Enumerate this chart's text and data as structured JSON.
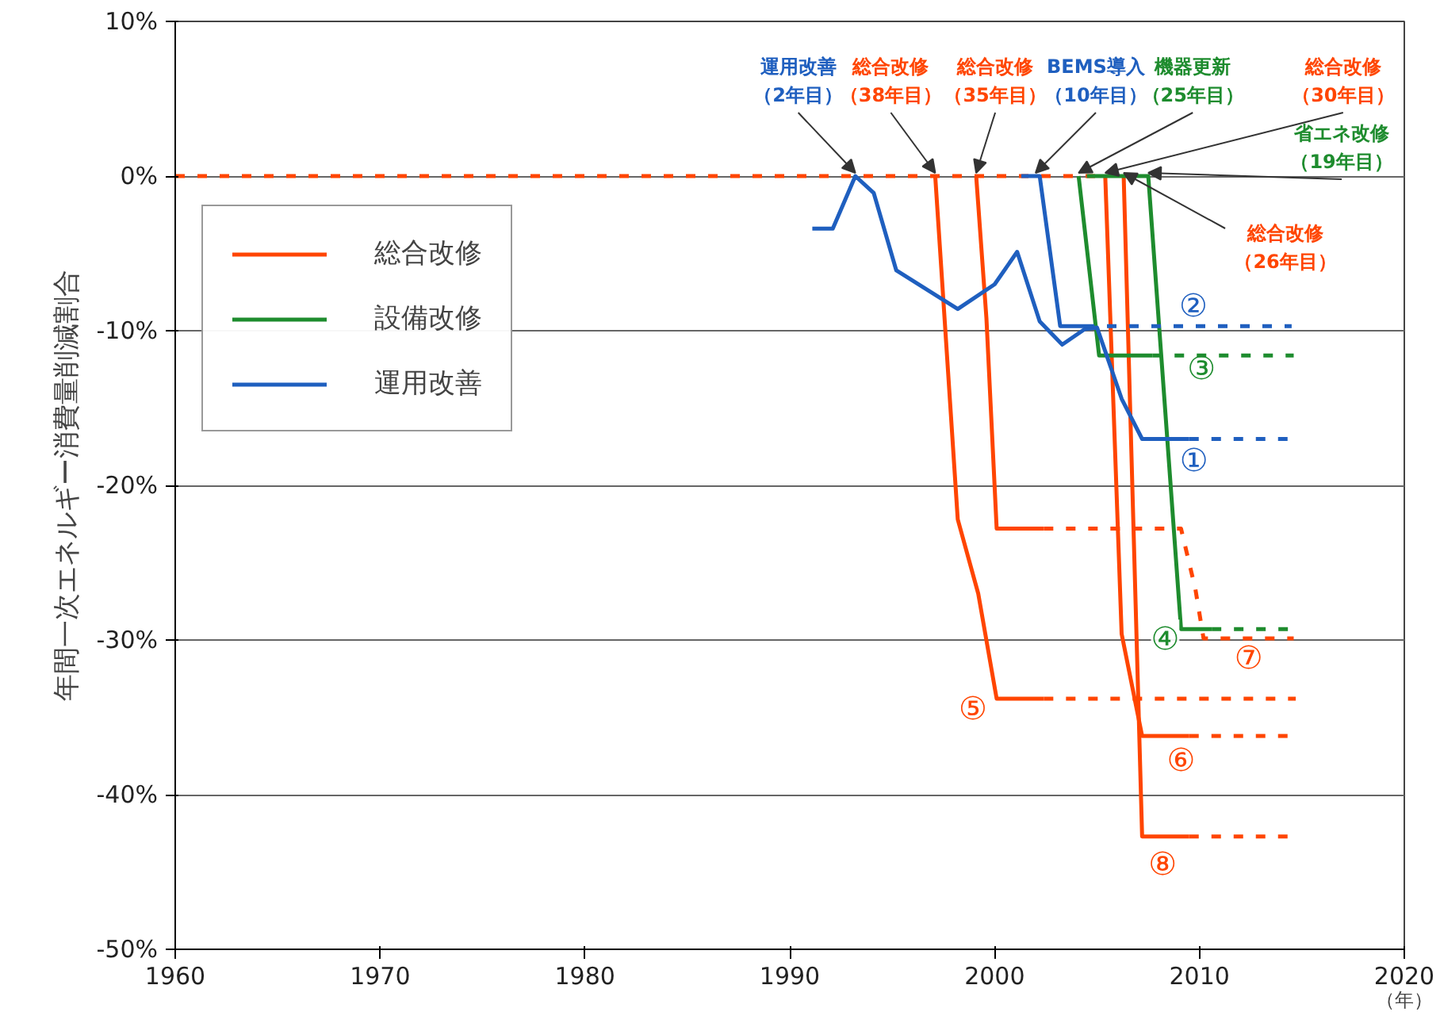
{
  "chart_data": {
    "type": "line",
    "ylabel": "年間一次エネルギー消費量削減割合",
    "xlabel": "（年）",
    "xlim": [
      1960,
      2020
    ],
    "xticks": [
      1960,
      1970,
      1980,
      1990,
      2000,
      2010,
      2020
    ],
    "ylim": [
      -50,
      10
    ],
    "yticks": [
      {
        "value": -50,
        "label": "-50%"
      },
      {
        "value": -40,
        "label": "-40%"
      },
      {
        "value": -30,
        "label": "-30%"
      },
      {
        "value": -20,
        "label": "-20%"
      },
      {
        "value": -10,
        "label": "-10%"
      },
      {
        "value": 0,
        "label": "0%"
      },
      {
        "value": 10,
        "label": "10%"
      }
    ],
    "grid": "y",
    "marker": "none",
    "legend": "top left",
    "series": [
      {
        "color": "#ff4500",
        "line_style": "dashed",
        "x": [
          1960,
          2005
        ],
        "values": [
          0,
          0
        ]
      },
      {
        "name": "総合改修",
        "color": "#ff4500",
        "line_style": "solid",
        "x": [
          1997.1,
          1998.2,
          1999.2,
          2000.1,
          2002.4
        ],
        "values": [
          0,
          -22.2,
          -27,
          -33.8,
          -33.8
        ]
      },
      {
        "color": "#ff4500",
        "line_style": "dashed",
        "x": [
          2002.4,
          2014.7
        ],
        "values": [
          -33.8,
          -33.8
        ]
      },
      {
        "color": "#ff4500",
        "line_style": "solid",
        "x": [
          1999.1,
          1999.6,
          2000.1,
          2002.4
        ],
        "values": [
          0,
          -9.2,
          -22.8,
          -22.8
        ]
      },
      {
        "color": "#ff4500",
        "line_style": "dashed",
        "x": [
          2002.4,
          2009.1,
          2009.8,
          2010.2,
          2014.6
        ],
        "values": [
          -22.8,
          -22.8,
          -26.7,
          -29.9,
          -29.9
        ]
      },
      {
        "color": "#ff4500",
        "line_style": "solid",
        "x": [
          2005.4,
          2006.2,
          2007.2,
          2009.5
        ],
        "values": [
          0,
          -29.6,
          -36.2,
          -36.2
        ]
      },
      {
        "color": "#ff4500",
        "line_style": "dashed",
        "x": [
          2009.5,
          2014.6
        ],
        "values": [
          -36.2,
          -36.2
        ]
      },
      {
        "color": "#ff4500",
        "line_style": "solid",
        "x": [
          2006.3,
          2007.2,
          2009.5
        ],
        "values": [
          0,
          -42.7,
          -42.7
        ]
      },
      {
        "color": "#ff4500",
        "line_style": "dashed",
        "x": [
          2009.5,
          2014.6
        ],
        "values": [
          -42.7,
          -42.7
        ]
      },
      {
        "name": "設備改修",
        "color": "#1e8c2e",
        "line_style": "solid",
        "x": [
          2004.1,
          2005.1,
          2007.7
        ],
        "values": [
          0,
          -11.6,
          -11.6
        ]
      },
      {
        "color": "#1e8c2e",
        "line_style": "dashed",
        "x": [
          2007.7,
          2014.6
        ],
        "values": [
          -11.6,
          -11.6
        ]
      },
      {
        "color": "#1e8c2e",
        "line_style": "solid",
        "x": [
          2004.5,
          2007.5,
          2009.1,
          2010.6
        ],
        "values": [
          0,
          0,
          -29.3,
          -29.3
        ]
      },
      {
        "color": "#1e8c2e",
        "line_style": "dashed",
        "x": [
          2010.6,
          2014.6
        ],
        "values": [
          -29.3,
          -29.3
        ]
      },
      {
        "name": "運用改善",
        "color": "#1f5fbf",
        "line_style": "solid",
        "x": [
          1991.1,
          1992.1,
          1993.2,
          1994.1,
          1995.2,
          1998.2,
          2000.0,
          2001.1,
          2002.2,
          2003.3,
          2004.4,
          2005.0,
          2006.2,
          2007.2,
          2009.5
        ],
        "values": [
          -3.4,
          -3.4,
          0,
          -1.1,
          -6.1,
          -8.6,
          -7.0,
          -4.9,
          -9.4,
          -10.9,
          -9.9,
          -9.8,
          -14.4,
          -17.0,
          -17.0
        ]
      },
      {
        "color": "#1f5fbf",
        "line_style": "dashed",
        "x": [
          2009.5,
          2014.6
        ],
        "values": [
          -17.0,
          -17.0
        ]
      },
      {
        "color": "#1f5fbf",
        "line_style": "solid",
        "x": [
          2001.3,
          2002.2,
          2003.2,
          2004.4
        ],
        "values": [
          0,
          0,
          -9.7,
          -9.7
        ]
      },
      {
        "color": "#1f5fbf",
        "line_style": "dashed",
        "x": [
          2004.4,
          2014.5
        ],
        "values": [
          -9.7,
          -9.7
        ]
      }
    ],
    "annotations": [
      {
        "text": "運用改善（2年目）",
        "x": 1993.2,
        "y": 0
      },
      {
        "text": "総合改修（38年目）",
        "x": 1997.1,
        "y": 0
      },
      {
        "text": "総合改修（35年目）",
        "x": 1999.1,
        "y": 0
      },
      {
        "text": "BEMS導入（10年目）",
        "x": 2002.0,
        "y": 0
      },
      {
        "text": "機器更新（25年目）",
        "x": 2004.1,
        "y": 0
      },
      {
        "text": "総合改修（30年目）",
        "x": 2005.4,
        "y": 0
      },
      {
        "text": "省エネ改修（19年目）",
        "x": 2007.5,
        "y": 0
      },
      {
        "text": "総合改修（26年目）",
        "x": 2006.3,
        "y": 0
      },
      {
        "text": "①",
        "x": 2009.5,
        "y": -17.0
      },
      {
        "text": "②",
        "x": 2009.7,
        "y": -9.7
      },
      {
        "text": "③",
        "x": 2010.1,
        "y": -11.6
      },
      {
        "text": "④",
        "x": 2009.1,
        "y": -29.3
      },
      {
        "text": "⑤",
        "x": 2000.1,
        "y": -33.8
      },
      {
        "text": "⑥",
        "x": 2009.1,
        "y": -36.2
      },
      {
        "text": "⑦",
        "x": 2012.4,
        "y": -29.9
      },
      {
        "text": "⑧",
        "x": 2008.2,
        "y": -42.7
      }
    ]
  }
}
